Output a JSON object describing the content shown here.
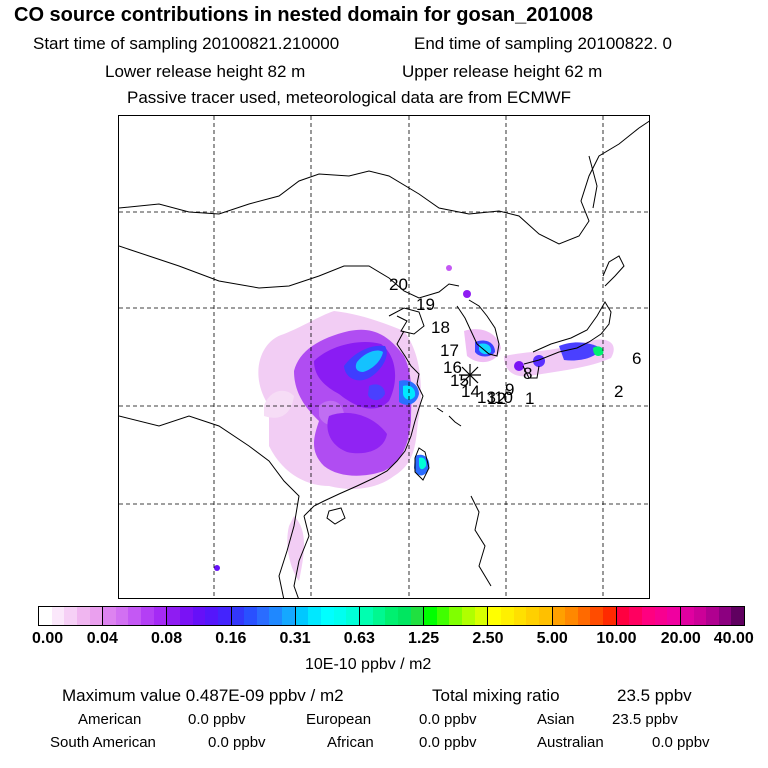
{
  "header": {
    "title": "CO  source contributions in nested domain for gosan_201008",
    "start_label": "Start time of sampling 20100821.210000",
    "end_label": "End time of sampling 20100822.     0",
    "lower_label": "Lower release height   82 m",
    "upper_label": "Upper release height   62 m",
    "tracer_label": "Passive tracer used, meteorological data are from ECMWF"
  },
  "map": {
    "trajectory_labels": [
      "20",
      "19",
      "18",
      "17",
      "16",
      "15",
      "14",
      "13",
      "12",
      "10",
      "9",
      "8",
      "6",
      "2",
      "1"
    ],
    "receptor_marker": "gosan-receptor",
    "colors": {
      "very_low": "#f6d8f6",
      "low": "#d98cf2",
      "mid_purple": "#9a1ff0",
      "blue": "#4a40ff",
      "light_blue": "#2f8dff",
      "cyan": "#00e6ff",
      "green": "#00f070",
      "coast": "#000000"
    }
  },
  "colorbar": {
    "ticks": [
      "0.00",
      "0.04",
      "0.08",
      "0.16",
      "0.31",
      "0.63",
      "1.25",
      "2.50",
      "5.00",
      "10.00",
      "20.00",
      "40.00"
    ],
    "segments": [
      [
        "#ffffff",
        "#fbe8fb",
        "#f6d0f6",
        "#f0b6f0",
        "#eaa0ee"
      ],
      [
        "#dd83f0",
        "#d270f2",
        "#c458f4",
        "#b43ff5",
        "#a52af5"
      ],
      [
        "#8f1cf2",
        "#7a12f5",
        "#6610f8",
        "#5516fb",
        "#4424fd"
      ],
      [
        "#3337fb",
        "#2950ff",
        "#2a6cff",
        "#1f88ff",
        "#15a8ff"
      ],
      [
        "#00c8ff",
        "#00e8ff",
        "#00ffff",
        "#00fff0",
        "#00ffd8"
      ],
      [
        "#00ffb0",
        "#00f890",
        "#00f070",
        "#00e660",
        "#20e040"
      ],
      [
        "#00ff00",
        "#40ff00",
        "#80ff00",
        "#b0ff00",
        "#d8ff00"
      ],
      [
        "#ffff00",
        "#fff000",
        "#ffe000",
        "#ffd000",
        "#ffc000"
      ],
      [
        "#ffa000",
        "#ff8800",
        "#ff6a00",
        "#ff4c00",
        "#ff2a00"
      ],
      [
        "#ff0040",
        "#ff0060",
        "#ff0080",
        "#f80090",
        "#f000a0"
      ],
      [
        "#e000a0",
        "#cc0098",
        "#b00090",
        "#8c0080",
        "#600060"
      ]
    ],
    "unit": "10E-10 ppbv / m2"
  },
  "stats": {
    "max_label": "Maximum value  0.487E-09 ppbv / m2",
    "total_label": "Total mixing ratio",
    "total_value": "23.5 ppbv",
    "american_label": "American",
    "american_value": "0.0 ppbv",
    "european_label": "European",
    "european_value": "0.0 ppbv",
    "asian_label": "Asian",
    "asian_value": "23.5 ppbv",
    "south_american_label": "South American",
    "south_american_value": "0.0 ppbv",
    "african_label": "African",
    "african_value": "0.0 ppbv",
    "australian_label": "Australian",
    "australian_value": "0.0 ppbv"
  }
}
